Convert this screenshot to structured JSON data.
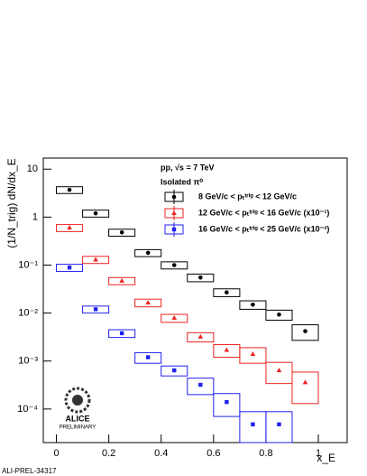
{
  "chart_data": {
    "type": "scatter",
    "x_label": "x_E",
    "y_label": "(1/N_trig) dN/dx_E",
    "annotations": [
      "pp, √s = 7 TeV",
      "Isolated π⁰"
    ],
    "footer": "ALI-PREL-34317",
    "logo": [
      "ALICE",
      "PRELIMINARY"
    ],
    "x": [
      0.05,
      0.15,
      0.25,
      0.35,
      0.45,
      0.55,
      0.65,
      0.75,
      0.85,
      0.95
    ],
    "series": [
      {
        "name": "8 GeV/c < pₜᵗʳⁱᵍ < 12 GeV/c",
        "color": "#000000",
        "values": [
          3.7,
          1.2,
          0.48,
          0.18,
          0.1,
          0.055,
          0.027,
          0.015,
          0.0093,
          0.0042
        ],
        "sys": [
          0.6,
          0.2,
          0.08,
          0.03,
          0.017,
          0.01,
          0.005,
          0.003,
          0.0022,
          0.0015
        ]
      },
      {
        "name": "12 GeV/c < pₜᵗʳⁱᵍ < 16 GeV/c (x10⁻¹)",
        "color": "#ee2222",
        "values": [
          0.6,
          0.13,
          0.047,
          0.0165,
          0.0079,
          0.0032,
          0.0017,
          0.0014,
          0.00064,
          0.00036
        ],
        "sys": [
          0.1,
          0.022,
          0.008,
          0.003,
          0.0015,
          0.0007,
          0.0005,
          0.0005,
          0.0003,
          0.00023
        ]
      },
      {
        "name": "16 GeV/c < pₜᵗʳⁱᵍ < 25 GeV/c (x10⁻²)",
        "color": "#1f1fee",
        "values": [
          0.089,
          0.012,
          0.0038,
          0.0012,
          0.00064,
          0.00032,
          0.00014,
          4.8e-05,
          4.8e-05,
          null
        ],
        "sys": [
          0.015,
          0.002,
          0.0007,
          0.0003,
          0.00015,
          0.00012,
          7e-05,
          4e-05,
          4e-05,
          null
        ]
      }
    ],
    "xlim": [
      -0.05,
      1.11
    ],
    "xticks": [
      0,
      0.2,
      0.4,
      0.6,
      0.8,
      1
    ],
    "ylim": [
      2e-05,
      17
    ],
    "log_y": true,
    "yticks": [
      10,
      1,
      {
        "value": 0.1,
        "label": "10⁻¹"
      },
      {
        "value": 0.01,
        "label": "10⁻²"
      },
      {
        "value": 0.001,
        "label": "10⁻³"
      },
      {
        "value": 0.0001,
        "label": "10⁻⁴"
      }
    ],
    "box_width": 0.1
  }
}
